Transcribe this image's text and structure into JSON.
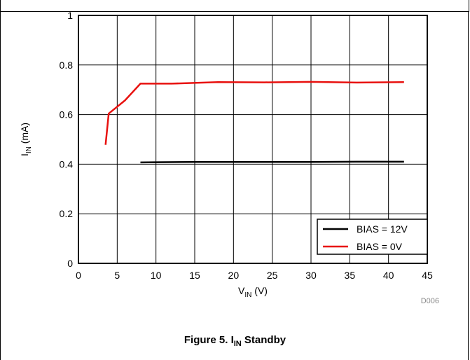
{
  "chart_data": {
    "type": "line",
    "xlabel": "V",
    "xlabel_sub": "IN",
    "xlabel_unit": " (V)",
    "ylabel": "I",
    "ylabel_sub": "IN",
    "ylabel_unit": " (mA)",
    "xlim": [
      0,
      45
    ],
    "ylim": [
      0,
      1
    ],
    "xticks": [
      0,
      5,
      10,
      15,
      20,
      25,
      30,
      35,
      40,
      45
    ],
    "yticks": [
      0,
      0.2,
      0.4,
      0.6,
      0.8,
      1
    ],
    "ytick_labels": [
      "0",
      "0.2",
      "0.4",
      "0.6",
      "0.8",
      "1"
    ],
    "grid": true,
    "legend_position": "bottom-right",
    "series": [
      {
        "name": "BIAS = 12V",
        "color": "#000000",
        "x": [
          8,
          10,
          15,
          20,
          25,
          30,
          36,
          42
        ],
        "y": [
          0.407,
          0.408,
          0.409,
          0.409,
          0.409,
          0.409,
          0.41,
          0.41
        ]
      },
      {
        "name": "BIAS = 0V",
        "color": "#e8110f",
        "x": [
          3.5,
          3.9,
          6,
          8,
          12,
          18,
          24,
          30,
          36,
          42
        ],
        "y": [
          0.478,
          0.604,
          0.657,
          0.725,
          0.725,
          0.731,
          0.73,
          0.732,
          0.729,
          0.731
        ]
      }
    ],
    "code": "D006"
  },
  "caption": {
    "prefix": "Figure 5. I",
    "sub": "IN",
    "suffix": " Standby"
  }
}
